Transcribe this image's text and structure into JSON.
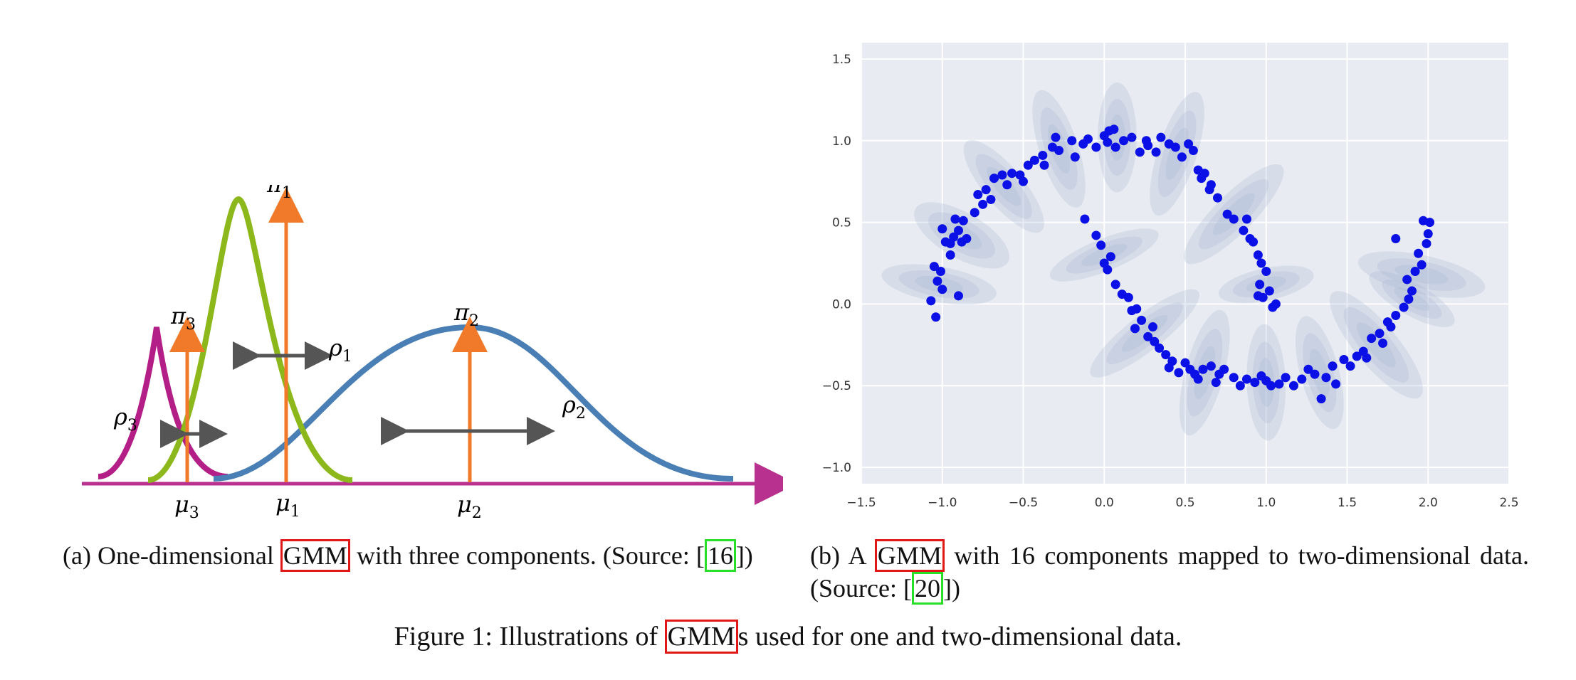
{
  "panel_a": {
    "labels": {
      "pi1": "π",
      "pi1_sub": "1",
      "pi2": "π",
      "pi2_sub": "2",
      "pi3": "π",
      "pi3_sub": "3",
      "rho1": "ρ",
      "rho1_sub": "1",
      "rho2": "ρ",
      "rho2_sub": "2",
      "rho3": "ρ",
      "rho3_sub": "3",
      "mu1": "μ",
      "mu1_sub": "1",
      "mu2": "μ",
      "mu2_sub": "2",
      "mu3": "μ",
      "mu3_sub": "3"
    },
    "colors": {
      "green": "#8cb81c",
      "blue": "#4a7fb5",
      "magenta": "#b31f86",
      "orange": "#f07a2a",
      "arrow": "#555555",
      "axis": "#b8318f"
    }
  },
  "chart_data": {
    "type": "scatter",
    "xlim": [
      -1.5,
      2.5
    ],
    "ylim": [
      -1.1,
      1.6
    ],
    "x_ticks": [
      "−1.5",
      "−1.0",
      "−0.5",
      "0.0",
      "0.5",
      "1.0",
      "1.5",
      "2.0",
      "2.5"
    ],
    "x_tick_values": [
      -1.5,
      -1.0,
      -0.5,
      0.0,
      0.5,
      1.0,
      1.5,
      2.0,
      2.5
    ],
    "y_ticks": [
      "−1.0",
      "−0.5",
      "0.0",
      "0.5",
      "1.0",
      "1.5"
    ],
    "y_tick_values": [
      -1.0,
      -0.5,
      0.0,
      0.5,
      1.0,
      1.5
    ],
    "grid": true,
    "background": "#e9ebf2",
    "point_color": "#0a10e6",
    "ellipse_color": "#a9b6d3",
    "components": [
      {
        "cx": -1.02,
        "cy": 0.12,
        "rx": 0.11,
        "ry": 0.36,
        "angle": -80
      },
      {
        "cx": -0.88,
        "cy": 0.42,
        "rx": 0.14,
        "ry": 0.33,
        "angle": -60
      },
      {
        "cx": -0.62,
        "cy": 0.72,
        "rx": 0.12,
        "ry": 0.36,
        "angle": -40
      },
      {
        "cx": -0.28,
        "cy": 0.95,
        "rx": 0.12,
        "ry": 0.38,
        "angle": -18
      },
      {
        "cx": 0.08,
        "cy": 1.02,
        "rx": 0.12,
        "ry": 0.34,
        "angle": 0
      },
      {
        "cx": 0.45,
        "cy": 0.92,
        "rx": 0.12,
        "ry": 0.4,
        "angle": 18
      },
      {
        "cx": 0.8,
        "cy": 0.55,
        "rx": 0.12,
        "ry": 0.42,
        "angle": 45
      },
      {
        "cx": 1.0,
        "cy": 0.12,
        "rx": 0.1,
        "ry": 0.3,
        "angle": 78
      },
      {
        "cx": 0.0,
        "cy": 0.3,
        "rx": 0.1,
        "ry": 0.36,
        "angle": 68
      },
      {
        "cx": 0.25,
        "cy": -0.18,
        "rx": 0.11,
        "ry": 0.42,
        "angle": 52
      },
      {
        "cx": 0.62,
        "cy": -0.42,
        "rx": 0.12,
        "ry": 0.4,
        "angle": 15
      },
      {
        "cx": 1.0,
        "cy": -0.48,
        "rx": 0.12,
        "ry": 0.36,
        "angle": -2
      },
      {
        "cx": 1.33,
        "cy": -0.42,
        "rx": 0.12,
        "ry": 0.36,
        "angle": -15
      },
      {
        "cx": 1.68,
        "cy": -0.25,
        "rx": 0.13,
        "ry": 0.42,
        "angle": -40
      },
      {
        "cx": 1.96,
        "cy": 0.18,
        "rx": 0.12,
        "ry": 0.4,
        "angle": -78
      },
      {
        "cx": 1.9,
        "cy": 0.03,
        "rx": 0.1,
        "ry": 0.3,
        "angle": -60
      }
    ],
    "points": [
      [
        -1.07,
        0.02
      ],
      [
        -1.04,
        -0.08
      ],
      [
        -1.05,
        0.23
      ],
      [
        -1.01,
        0.2
      ],
      [
        -1.03,
        0.14
      ],
      [
        -1.0,
        0.09
      ],
      [
        -0.98,
        0.38
      ],
      [
        -1.0,
        0.46
      ],
      [
        -0.95,
        0.37
      ],
      [
        -0.93,
        0.41
      ],
      [
        -0.95,
        0.3
      ],
      [
        -0.9,
        0.45
      ],
      [
        -0.88,
        0.38
      ],
      [
        -0.92,
        0.52
      ],
      [
        -0.87,
        0.51
      ],
      [
        -0.85,
        0.4
      ],
      [
        -0.9,
        0.05
      ],
      [
        -0.8,
        0.56
      ],
      [
        -0.78,
        0.67
      ],
      [
        -0.75,
        0.61
      ],
      [
        -0.73,
        0.7
      ],
      [
        -0.7,
        0.64
      ],
      [
        -0.68,
        0.77
      ],
      [
        -0.63,
        0.79
      ],
      [
        -0.6,
        0.73
      ],
      [
        -0.57,
        0.8
      ],
      [
        -0.52,
        0.79
      ],
      [
        -0.5,
        0.75
      ],
      [
        -0.47,
        0.85
      ],
      [
        -0.43,
        0.88
      ],
      [
        -0.38,
        0.91
      ],
      [
        -0.37,
        0.85
      ],
      [
        -0.32,
        0.96
      ],
      [
        -0.3,
        1.02
      ],
      [
        -0.28,
        0.94
      ],
      [
        -0.2,
        1.0
      ],
      [
        -0.18,
        0.9
      ],
      [
        -0.13,
        0.98
      ],
      [
        -0.1,
        1.01
      ],
      [
        -0.05,
        0.96
      ],
      [
        0.0,
        1.03
      ],
      [
        0.03,
        1.06
      ],
      [
        0.02,
        0.99
      ],
      [
        0.06,
        1.07
      ],
      [
        0.07,
        0.96
      ],
      [
        0.12,
        1.0
      ],
      [
        0.17,
        1.02
      ],
      [
        0.22,
        0.93
      ],
      [
        0.26,
        1.0
      ],
      [
        0.32,
        0.93
      ],
      [
        0.27,
        0.97
      ],
      [
        0.35,
        1.02
      ],
      [
        0.4,
        0.98
      ],
      [
        0.44,
        0.96
      ],
      [
        0.48,
        0.9
      ],
      [
        0.52,
        0.98
      ],
      [
        0.55,
        0.94
      ],
      [
        0.58,
        0.82
      ],
      [
        0.6,
        0.77
      ],
      [
        0.62,
        0.8
      ],
      [
        0.65,
        0.7
      ],
      [
        0.66,
        0.73
      ],
      [
        0.7,
        0.65
      ],
      [
        0.76,
        0.55
      ],
      [
        0.8,
        0.52
      ],
      [
        0.86,
        0.45
      ],
      [
        0.88,
        0.52
      ],
      [
        0.9,
        0.4
      ],
      [
        0.92,
        0.38
      ],
      [
        0.95,
        0.3
      ],
      [
        0.97,
        0.25
      ],
      [
        1.0,
        0.2
      ],
      [
        0.96,
        0.12
      ],
      [
        0.98,
        0.04
      ],
      [
        1.02,
        0.08
      ],
      [
        1.06,
        0.0
      ],
      [
        1.04,
        -0.02
      ],
      [
        0.95,
        0.05
      ],
      [
        -0.12,
        0.52
      ],
      [
        -0.05,
        0.42
      ],
      [
        -0.02,
        0.36
      ],
      [
        0.0,
        0.25
      ],
      [
        0.04,
        0.29
      ],
      [
        0.02,
        0.21
      ],
      [
        0.07,
        0.12
      ],
      [
        0.11,
        0.06
      ],
      [
        0.15,
        0.04
      ],
      [
        0.17,
        -0.04
      ],
      [
        0.2,
        -0.03
      ],
      [
        0.23,
        -0.1
      ],
      [
        0.19,
        -0.15
      ],
      [
        0.27,
        -0.2
      ],
      [
        0.3,
        -0.14
      ],
      [
        0.31,
        -0.23
      ],
      [
        0.34,
        -0.27
      ],
      [
        0.38,
        -0.31
      ],
      [
        0.42,
        -0.35
      ],
      [
        0.4,
        -0.39
      ],
      [
        0.46,
        -0.42
      ],
      [
        0.5,
        -0.36
      ],
      [
        0.53,
        -0.4
      ],
      [
        0.56,
        -0.43
      ],
      [
        0.58,
        -0.46
      ],
      [
        0.61,
        -0.4
      ],
      [
        0.66,
        -0.38
      ],
      [
        0.69,
        -0.48
      ],
      [
        0.71,
        -0.43
      ],
      [
        0.74,
        -0.4
      ],
      [
        0.8,
        -0.45
      ],
      [
        0.84,
        -0.5
      ],
      [
        0.88,
        -0.46
      ],
      [
        0.93,
        -0.48
      ],
      [
        0.97,
        -0.44
      ],
      [
        1.0,
        -0.47
      ],
      [
        1.03,
        -0.5
      ],
      [
        1.08,
        -0.49
      ],
      [
        1.12,
        -0.45
      ],
      [
        1.17,
        -0.5
      ],
      [
        1.22,
        -0.46
      ],
      [
        1.26,
        -0.4
      ],
      [
        1.3,
        -0.43
      ],
      [
        1.34,
        -0.58
      ],
      [
        1.37,
        -0.45
      ],
      [
        1.41,
        -0.38
      ],
      [
        1.43,
        -0.49
      ],
      [
        1.48,
        -0.34
      ],
      [
        1.52,
        -0.38
      ],
      [
        1.56,
        -0.32
      ],
      [
        1.6,
        -0.29
      ],
      [
        1.62,
        -0.33
      ],
      [
        1.65,
        -0.21
      ],
      [
        1.7,
        -0.18
      ],
      [
        1.72,
        -0.24
      ],
      [
        1.77,
        -0.14
      ],
      [
        1.8,
        -0.07
      ],
      [
        1.85,
        -0.02
      ],
      [
        1.88,
        0.03
      ],
      [
        1.9,
        0.08
      ],
      [
        1.87,
        0.15
      ],
      [
        1.92,
        0.2
      ],
      [
        1.96,
        0.24
      ],
      [
        1.94,
        0.31
      ],
      [
        1.99,
        0.37
      ],
      [
        2.0,
        0.43
      ],
      [
        2.01,
        0.5
      ],
      [
        1.97,
        0.51
      ],
      [
        1.8,
        0.4
      ],
      [
        1.75,
        -0.11
      ]
    ]
  },
  "captions": {
    "a_prefix": "(a)  One-dimensional ",
    "a_gmm": "GMM",
    "a_suffix": " with three components. (Source: [",
    "a_ref": "16",
    "a_end": "])",
    "b_prefix": "(b) A ",
    "b_gmm": "GMM",
    "b_suffix": " with 16 components mapped to two-dimensional data. (Source: [",
    "b_ref": "20",
    "b_end": "])",
    "main_prefix": "Figure 1: Illustrations of ",
    "main_gmm": "GMM",
    "main_suffix": "s used for one and two-dimensional data."
  }
}
